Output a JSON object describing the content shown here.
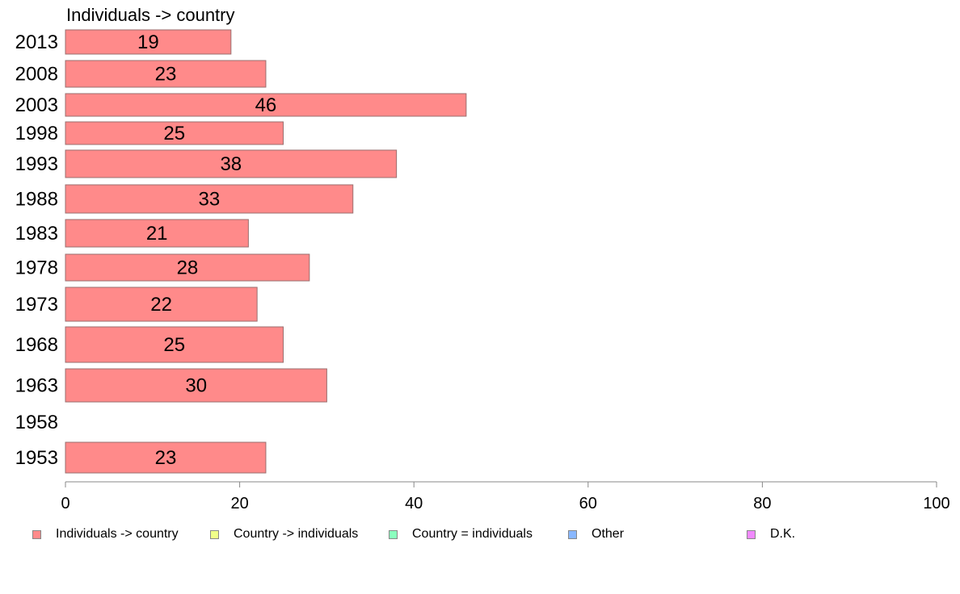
{
  "chart_data": {
    "type": "bar",
    "orientation": "horizontal",
    "title": "Individuals -> country",
    "categories": [
      "2013",
      "2008",
      "2003",
      "1998",
      "1993",
      "1988",
      "1983",
      "1978",
      "1973",
      "1968",
      "1963",
      "1958",
      "1953"
    ],
    "series": [
      {
        "name": "Individuals -> country",
        "color": "#ff8a8a",
        "values": [
          19,
          23,
          46,
          25,
          38,
          33,
          21,
          28,
          22,
          25,
          30,
          null,
          23
        ]
      }
    ],
    "data_labels": [
      "19",
      "23",
      "46",
      "25",
      "38",
      "33",
      "21",
      "28",
      "22",
      "25",
      "30",
      "",
      "23"
    ],
    "xlim": [
      0,
      100
    ],
    "xticks": [
      "0",
      "20",
      "40",
      "60",
      "80",
      "100"
    ],
    "grid": false
  },
  "legend": {
    "placement": "bottom",
    "items": [
      {
        "label": "Individuals -> country",
        "color": "#ff8a8a"
      },
      {
        "label": "Country -> individuals",
        "color": "#f0ff8a"
      },
      {
        "label": "Country = individuals",
        "color": "#8affbe"
      },
      {
        "label": "Other",
        "color": "#8ab8ff"
      },
      {
        "label": "D.K.",
        "color": "#f08aff"
      }
    ]
  }
}
